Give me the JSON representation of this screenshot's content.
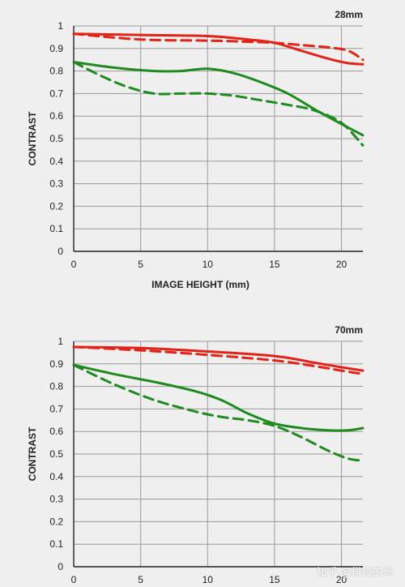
{
  "watermark": "知乎 @微微的马",
  "colors": {
    "sagittal_red": "#e2231a",
    "tangential_green": "#1f8a1f",
    "grid": "#9a9a9a",
    "background": "#efefef"
  },
  "chart_data": [
    {
      "type": "line",
      "title": "28mm",
      "xlabel": "IMAGE HEIGHT (mm)",
      "ylabel": "CONTRAST",
      "xlim": [
        0,
        21.6
      ],
      "ylim": [
        0,
        1
      ],
      "xticks": [
        0,
        5,
        10,
        15,
        20
      ],
      "yticks": [
        0,
        0.1,
        0.2,
        0.3,
        0.4,
        0.5,
        0.6,
        0.7,
        0.8,
        0.9,
        1
      ],
      "ytick_labels": [
        "0",
        "0.1",
        "0.2",
        "0.3",
        "0.4",
        "0.5",
        "0.6",
        "0.7",
        "0.8",
        "0.9",
        "1"
      ],
      "grid": true,
      "series": [
        {
          "color": "#e2231a",
          "dash": false,
          "x": [
            0,
            5,
            10,
            13,
            15,
            17,
            19,
            20.5,
            21.6
          ],
          "y": [
            0.965,
            0.96,
            0.955,
            0.94,
            0.925,
            0.89,
            0.855,
            0.835,
            0.83
          ]
        },
        {
          "color": "#e2231a",
          "dash": true,
          "x": [
            0,
            5,
            10,
            13,
            15,
            17,
            19,
            20.5,
            21.6
          ],
          "y": [
            0.965,
            0.94,
            0.935,
            0.93,
            0.925,
            0.915,
            0.905,
            0.89,
            0.85
          ]
        },
        {
          "color": "#1f8a1f",
          "dash": false,
          "x": [
            0,
            3,
            6,
            8,
            10,
            12,
            14,
            16,
            18,
            20,
            21.6
          ],
          "y": [
            0.84,
            0.815,
            0.8,
            0.8,
            0.81,
            0.79,
            0.75,
            0.7,
            0.63,
            0.565,
            0.515
          ]
        },
        {
          "color": "#1f8a1f",
          "dash": true,
          "x": [
            0,
            2,
            4,
            6,
            8,
            10,
            12,
            14,
            16,
            18,
            20,
            21.6
          ],
          "y": [
            0.84,
            0.78,
            0.73,
            0.7,
            0.7,
            0.7,
            0.69,
            0.67,
            0.65,
            0.625,
            0.57,
            0.47
          ]
        }
      ]
    },
    {
      "type": "line",
      "title": "70mm",
      "xlabel": "",
      "ylabel": "CONTRAST",
      "xlim": [
        0,
        21.6
      ],
      "ylim": [
        0,
        1
      ],
      "xticks": [
        0,
        5,
        10,
        15,
        20
      ],
      "yticks": [
        0,
        0.1,
        0.2,
        0.3,
        0.4,
        0.5,
        0.6,
        0.7,
        0.8,
        0.9,
        1
      ],
      "ytick_labels": [
        "0",
        "0.1",
        "0.2",
        "0.3",
        "0.4",
        "0.5",
        "0.6",
        "0.7",
        "0.8",
        "0.9",
        "1"
      ],
      "grid": true,
      "series": [
        {
          "color": "#e2231a",
          "dash": false,
          "x": [
            0,
            5,
            10,
            15,
            18,
            20,
            21.6
          ],
          "y": [
            0.975,
            0.97,
            0.955,
            0.935,
            0.905,
            0.885,
            0.87
          ]
        },
        {
          "color": "#e2231a",
          "dash": true,
          "x": [
            0,
            5,
            10,
            15,
            18,
            20,
            21.6
          ],
          "y": [
            0.975,
            0.96,
            0.94,
            0.915,
            0.89,
            0.87,
            0.855
          ]
        },
        {
          "color": "#1f8a1f",
          "dash": false,
          "x": [
            0,
            3,
            6,
            9,
            11,
            13,
            15,
            17,
            19,
            20.5,
            21.6
          ],
          "y": [
            0.895,
            0.855,
            0.82,
            0.78,
            0.74,
            0.68,
            0.635,
            0.615,
            0.605,
            0.605,
            0.615
          ]
        },
        {
          "color": "#1f8a1f",
          "dash": true,
          "x": [
            0,
            3,
            6,
            9,
            11,
            13,
            15,
            17,
            19,
            20.5,
            21.6
          ],
          "y": [
            0.895,
            0.81,
            0.74,
            0.69,
            0.665,
            0.65,
            0.625,
            0.575,
            0.515,
            0.48,
            0.47
          ]
        }
      ]
    }
  ]
}
